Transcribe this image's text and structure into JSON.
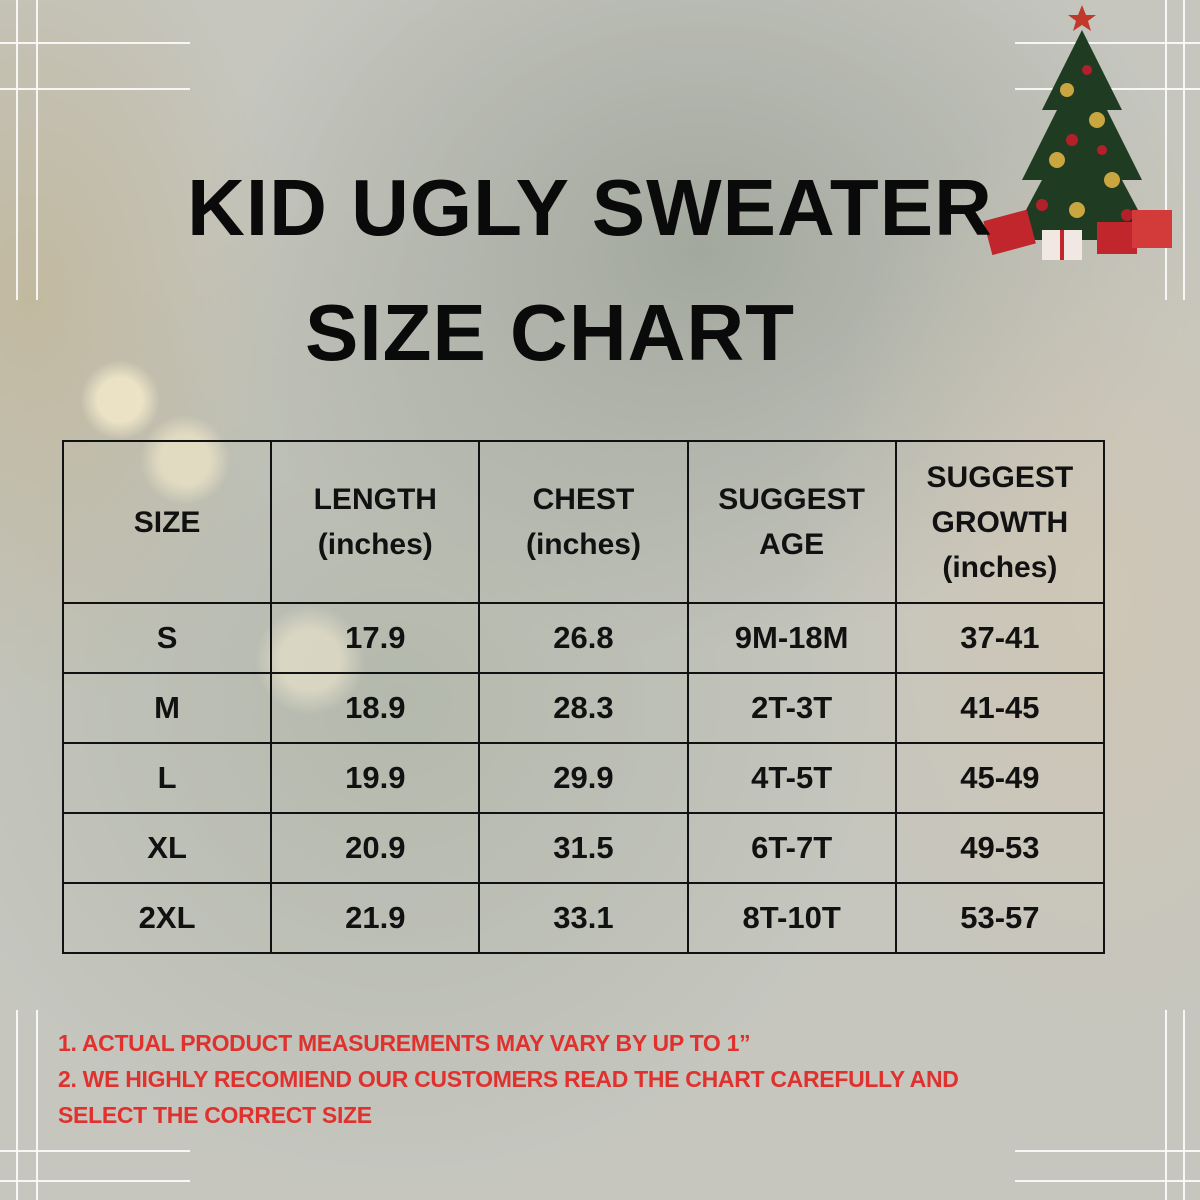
{
  "title": {
    "line1": "KID UGLY SWEATER",
    "line2": "SIZE CHART"
  },
  "table": {
    "headers": [
      [
        "SIZE"
      ],
      [
        "LENGTH",
        "(inches)"
      ],
      [
        "CHEST",
        "(inches)"
      ],
      [
        "SUGGEST",
        "AGE"
      ],
      [
        "SUGGEST",
        "GROWTH",
        "(inches)"
      ]
    ],
    "rows": [
      [
        "S",
        "17.9",
        "26.8",
        "9M-18M",
        "37-41"
      ],
      [
        "M",
        "18.9",
        "28.3",
        "2T-3T",
        "41-45"
      ],
      [
        "L",
        "19.9",
        "29.9",
        "4T-5T",
        "45-49"
      ],
      [
        "XL",
        "20.9",
        "31.5",
        "6T-7T",
        "49-53"
      ],
      [
        "2XL",
        "21.9",
        "33.1",
        "8T-10T",
        "53-57"
      ]
    ]
  },
  "notes": [
    "1. ACTUAL PRODUCT MEASUREMENTS MAY VARY BY UP TO 1”",
    "2. WE HIGHLY RECOMIEND OUR CUSTOMERS READ THE CHART CAREFULLY AND",
    "SELECT THE CORRECT SIZE"
  ],
  "colors": {
    "note_text": "#e0312e",
    "title_text": "#0a0a0a"
  },
  "icons": [
    "christmas-tree-icon"
  ]
}
